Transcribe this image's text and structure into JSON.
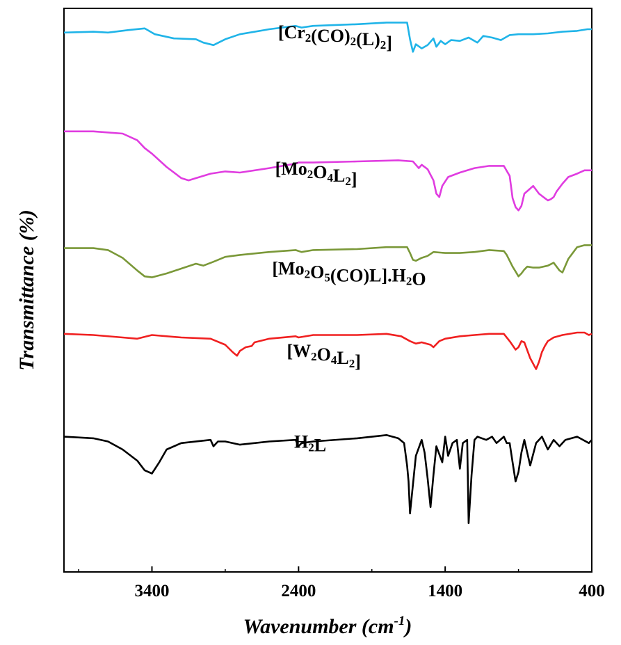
{
  "chart_data": {
    "type": "line",
    "title": "",
    "xlabel": "Wavenumber (cm-1)",
    "xlabel_parts": {
      "base": "Wavenumber (cm",
      "sup": "-1",
      "close": ")"
    },
    "ylabel": "Transmittance (%)",
    "x_reversed": true,
    "xlim": [
      4000,
      400
    ],
    "x_ticks": [
      3400,
      2400,
      1400,
      400
    ],
    "y_ticks": [],
    "grid": false,
    "legend": "none",
    "series": [
      {
        "name": "[Cr2(CO)2(L)2]",
        "label_parts": [
          [
            "[Cr",
            ""
          ],
          [
            "2",
            "sub"
          ],
          [
            "(CO)",
            ""
          ],
          [
            "2",
            "sub"
          ],
          [
            "(L)",
            ""
          ],
          [
            "2",
            "sub"
          ],
          [
            "]",
            ""
          ]
        ],
        "color": "#20B4E8",
        "x": [
          4000,
          3800,
          3700,
          3560,
          3450,
          3380,
          3250,
          3100,
          3050,
          2980,
          2900,
          2800,
          2600,
          2420,
          2380,
          2300,
          2000,
          1800,
          1660,
          1640,
          1620,
          1600,
          1560,
          1520,
          1480,
          1460,
          1430,
          1400,
          1360,
          1300,
          1240,
          1180,
          1140,
          1080,
          1020,
          960,
          900,
          800,
          700,
          600,
          500,
          430,
          400
        ],
        "y": [
          86.0,
          87.0,
          86.0,
          89.0,
          91.0,
          84.0,
          79.0,
          78.0,
          74.0,
          71.0,
          78.0,
          84.0,
          90.0,
          94.0,
          92.0,
          94.0,
          96.0,
          98.0,
          98.0,
          78.0,
          63.0,
          72.0,
          67.0,
          71.0,
          79.0,
          69.0,
          76.0,
          72.0,
          77.0,
          76.0,
          80.0,
          74.0,
          82.0,
          80.0,
          77.0,
          83.0,
          84.0,
          84.0,
          85.0,
          87.0,
          88.0,
          90.0,
          90.0
        ],
        "label_x": 2540,
        "label_y": 79
      },
      {
        "name": "[Mo2O4L2]",
        "label_parts": [
          [
            "[Mo",
            ""
          ],
          [
            "2",
            "sub"
          ],
          [
            "O",
            ""
          ],
          [
            "4",
            "sub"
          ],
          [
            "L",
            ""
          ],
          [
            "2",
            "sub"
          ],
          [
            "]",
            ""
          ]
        ],
        "color": "#E03CE0",
        "x": [
          4000,
          3800,
          3600,
          3500,
          3450,
          3400,
          3300,
          3200,
          3150,
          3100,
          3000,
          2900,
          2800,
          2600,
          2420,
          2400,
          2300,
          2000,
          1720,
          1620,
          1600,
          1580,
          1560,
          1520,
          1480,
          1460,
          1440,
          1420,
          1380,
          1300,
          1200,
          1100,
          1000,
          960,
          940,
          920,
          900,
          880,
          860,
          800,
          760,
          720,
          700,
          680,
          660,
          640,
          600,
          560,
          500,
          450,
          400
        ],
        "y": [
          82.0,
          82.0,
          80.0,
          74.0,
          67.0,
          62.0,
          50.0,
          40.0,
          38.0,
          40.0,
          44.0,
          46.0,
          45.0,
          49.0,
          53.0,
          54.0,
          54.0,
          55.0,
          56.0,
          55.0,
          52.0,
          49.0,
          52.0,
          48.0,
          38.0,
          26.0,
          23.0,
          33.0,
          41.0,
          45.0,
          49.0,
          51.0,
          51.0,
          42.0,
          22.0,
          14.0,
          11.0,
          15.0,
          26.0,
          33.0,
          26.0,
          22.0,
          20.0,
          21.0,
          23.0,
          28.0,
          35.0,
          41.0,
          44.0,
          47.0,
          47.0
        ],
        "label_x": 2560,
        "label_y": 43
      },
      {
        "name": "[Mo2O5(CO)L].H2O",
        "label_parts": [
          [
            "[Mo",
            ""
          ],
          [
            "2",
            "sub"
          ],
          [
            "O",
            ""
          ],
          [
            "5",
            "sub"
          ],
          [
            "(CO)L].H",
            ""
          ],
          [
            "2",
            "sub"
          ],
          [
            "O",
            ""
          ]
        ],
        "color": "#7A9838",
        "x": [
          4000,
          3800,
          3700,
          3600,
          3500,
          3450,
          3400,
          3300,
          3200,
          3100,
          3050,
          2980,
          2900,
          2800,
          2600,
          2420,
          2380,
          2300,
          2000,
          1800,
          1660,
          1640,
          1620,
          1600,
          1560,
          1520,
          1480,
          1400,
          1300,
          1200,
          1100,
          1000,
          980,
          960,
          940,
          920,
          900,
          880,
          860,
          840,
          800,
          760,
          700,
          660,
          620,
          600,
          560,
          500,
          450,
          400
        ],
        "y": [
          81.0,
          81.0,
          79.0,
          71.0,
          58.0,
          52.0,
          51.0,
          55.0,
          60.0,
          65.0,
          63.0,
          67.0,
          72.0,
          74.0,
          77.0,
          79.0,
          77.0,
          79.0,
          80.0,
          82.0,
          82.0,
          76.0,
          69.0,
          68.0,
          71.0,
          73.0,
          77.0,
          76.0,
          76.0,
          77.0,
          79.0,
          78.0,
          74.0,
          68.0,
          62.0,
          57.0,
          52.0,
          55.0,
          59.0,
          62.0,
          61.0,
          61.0,
          63.0,
          66.0,
          58.0,
          56.0,
          70.0,
          82.0,
          84.0,
          84.0
        ],
        "label_x": 2580,
        "label_y": 54
      },
      {
        "name": "[W2O4L2]",
        "label_parts": [
          [
            "[W",
            ""
          ],
          [
            "2",
            "sub"
          ],
          [
            "O",
            ""
          ],
          [
            "4",
            "sub"
          ],
          [
            "L",
            ""
          ],
          [
            "2",
            "sub"
          ],
          [
            "]",
            ""
          ]
        ],
        "color": "#F02020",
        "x": [
          4000,
          3800,
          3600,
          3500,
          3400,
          3200,
          3000,
          2900,
          2850,
          2820,
          2800,
          2760,
          2720,
          2700,
          2600,
          2420,
          2400,
          2300,
          2000,
          1800,
          1700,
          1640,
          1600,
          1560,
          1500,
          1480,
          1440,
          1400,
          1300,
          1200,
          1100,
          1000,
          960,
          920,
          900,
          880,
          860,
          820,
          780,
          760,
          740,
          720,
          700,
          660,
          600,
          500,
          450,
          420,
          400
        ],
        "y": [
          83.0,
          82.0,
          80.0,
          79.0,
          82.0,
          80.0,
          79.0,
          74.0,
          68.0,
          65.0,
          69.0,
          72.0,
          73.0,
          76.0,
          79.0,
          81.0,
          80.0,
          82.0,
          82.0,
          83.0,
          81.0,
          77.0,
          75.0,
          76.0,
          74.0,
          72.0,
          77.0,
          79.0,
          81.0,
          82.0,
          83.0,
          83.0,
          77.0,
          70.0,
          72.0,
          77.0,
          76.0,
          63.0,
          54.0,
          60.0,
          68.0,
          73.0,
          77.0,
          80.0,
          82.0,
          84.0,
          84.0,
          82.0,
          83.0
        ],
        "label_x": 2480,
        "label_y": 64
      },
      {
        "name": "H2L",
        "label_parts": [
          [
            "H",
            ""
          ],
          [
            "2",
            "sub"
          ],
          [
            "L",
            ""
          ]
        ],
        "color": "#000000",
        "x": [
          4000,
          3800,
          3700,
          3600,
          3500,
          3450,
          3400,
          3350,
          3300,
          3200,
          3000,
          2980,
          2950,
          2900,
          2800,
          2600,
          2420,
          2400,
          2380,
          2300,
          2000,
          1800,
          1720,
          1680,
          1660,
          1650,
          1640,
          1600,
          1560,
          1540,
          1520,
          1500,
          1480,
          1460,
          1420,
          1400,
          1380,
          1350,
          1320,
          1300,
          1280,
          1250,
          1240,
          1220,
          1200,
          1180,
          1120,
          1080,
          1050,
          1000,
          980,
          960,
          940,
          920,
          900,
          880,
          860,
          820,
          780,
          740,
          700,
          660,
          620,
          580,
          500,
          420,
          400
        ],
        "y": [
          88.0,
          87.0,
          85.0,
          80.0,
          73.0,
          67.0,
          65.0,
          72.0,
          80.0,
          84.0,
          86.0,
          82.0,
          85.0,
          85.0,
          83.0,
          85.0,
          86.0,
          82.0,
          84.0,
          85.0,
          87.0,
          89.0,
          87.0,
          84.0,
          70.0,
          60.0,
          40.0,
          76.0,
          86.0,
          78.0,
          62.0,
          44.0,
          64.0,
          82.0,
          72.0,
          88.0,
          76.0,
          84.0,
          86.0,
          68.0,
          84.0,
          86.0,
          34.0,
          64.0,
          86.0,
          88.0,
          86.0,
          88.0,
          84.0,
          88.0,
          84.0,
          84.0,
          72.0,
          60.0,
          66.0,
          78.0,
          86.0,
          70.0,
          84.0,
          88.0,
          80.0,
          86.0,
          82.0,
          86.0,
          88.0,
          84.0,
          86.0
        ],
        "label_x": 2430,
        "label_y": 81
      }
    ]
  }
}
